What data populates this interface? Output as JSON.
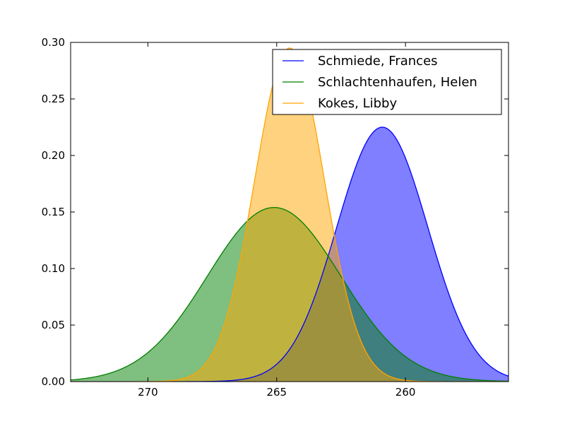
{
  "chart_data": {
    "type": "area",
    "title": "",
    "xlabel": "",
    "ylabel": "",
    "x_axis_inverted": true,
    "xlim": [
      273,
      256
    ],
    "ylim": [
      0,
      0.3
    ],
    "x_ticks": [
      270,
      265,
      260
    ],
    "y_ticks": [
      0.0,
      0.05,
      0.1,
      0.15,
      0.2,
      0.25,
      0.3
    ],
    "x_tick_labels": [
      "270",
      "265",
      "260"
    ],
    "y_tick_labels": [
      "0.00",
      "0.05",
      "0.10",
      "0.15",
      "0.20",
      "0.25",
      "0.30"
    ],
    "grid": false,
    "legend_position": "upper right",
    "series": [
      {
        "name": "Schmiede, Frances",
        "color": "#0000ff",
        "fill_color": "#8080ff",
        "distribution": "normal",
        "mean": 260.9,
        "peak_density": 0.225,
        "std_dev": 1.77
      },
      {
        "name": "Schlachtenhaufen, Helen",
        "color": "#007f00",
        "fill_color": "#80c080",
        "distribution": "normal",
        "mean": 265.1,
        "peak_density": 0.154,
        "std_dev": 2.59
      },
      {
        "name": "Kokes, Libby",
        "color": "#ffa500",
        "fill_color": "#ffd080",
        "distribution": "normal",
        "mean": 264.5,
        "peak_density": 0.295,
        "std_dev": 1.35
      }
    ]
  }
}
